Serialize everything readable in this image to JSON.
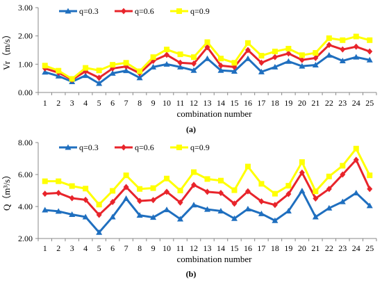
{
  "chart_data": [
    {
      "type": "line",
      "panel_label": "(a)",
      "ylabel": "Vr（m/s）",
      "xlabel": "combination number",
      "ylim": [
        0,
        3
      ],
      "yticks": [
        "0.00",
        "1.00",
        "2.00",
        "3.00"
      ],
      "categories": [
        "1",
        "2",
        "3",
        "4",
        "5",
        "6",
        "7",
        "8",
        "9",
        "10",
        "11",
        "12",
        "13",
        "14",
        "15",
        "16",
        "17",
        "18",
        "19",
        "20",
        "21",
        "22",
        "23",
        "24",
        "25"
      ],
      "legend_position": "top-left",
      "grid": false,
      "series": [
        {
          "name": "q=0.3",
          "color": "#1f6fbf",
          "marker": "triangle",
          "values": [
            0.72,
            0.58,
            0.38,
            0.6,
            0.32,
            0.68,
            0.77,
            0.52,
            0.9,
            1.0,
            0.9,
            0.78,
            1.2,
            0.78,
            0.75,
            1.2,
            0.73,
            0.9,
            1.1,
            0.93,
            0.97,
            1.32,
            1.12,
            1.25,
            1.15
          ]
        },
        {
          "name": "q=0.6",
          "color": "#e8242b",
          "marker": "diamond",
          "values": [
            0.85,
            0.7,
            0.45,
            0.75,
            0.52,
            0.85,
            0.92,
            0.68,
            1.12,
            1.33,
            1.05,
            1.02,
            1.6,
            0.95,
            0.9,
            1.5,
            1.05,
            1.25,
            1.38,
            1.15,
            1.22,
            1.68,
            1.52,
            1.62,
            1.45
          ]
        },
        {
          "name": "q=0.9",
          "color": "#ffff00",
          "marker": "square",
          "values": [
            0.95,
            0.77,
            0.48,
            0.87,
            0.78,
            0.98,
            1.05,
            0.75,
            1.25,
            1.52,
            1.35,
            1.25,
            1.78,
            1.2,
            1.05,
            1.75,
            1.3,
            1.45,
            1.55,
            1.32,
            1.4,
            1.92,
            1.85,
            1.98,
            1.85
          ]
        }
      ]
    },
    {
      "type": "line",
      "panel_label": "(b)",
      "ylabel": "Q（m³/s）",
      "xlabel": "combination number",
      "ylim": [
        2,
        8
      ],
      "yticks": [
        "2.00",
        "4.00",
        "6.00",
        "8.00"
      ],
      "categories": [
        "1",
        "2",
        "3",
        "4",
        "5",
        "6",
        "7",
        "8",
        "9",
        "10",
        "11",
        "12",
        "13",
        "14",
        "15",
        "16",
        "17",
        "18",
        "19",
        "20",
        "21",
        "22",
        "23",
        "24",
        "25"
      ],
      "legend_position": "top-left",
      "grid": false,
      "series": [
        {
          "name": "q=0.3",
          "color": "#1f6fbf",
          "marker": "triangle",
          "values": [
            3.78,
            3.7,
            3.5,
            3.35,
            2.38,
            3.35,
            4.5,
            3.45,
            3.32,
            3.8,
            3.22,
            4.1,
            3.82,
            3.72,
            3.25,
            3.85,
            3.55,
            3.12,
            3.72,
            4.98,
            3.35,
            3.9,
            4.3,
            4.85,
            4.05
          ]
        },
        {
          "name": "q=0.6",
          "color": "#e8242b",
          "marker": "diamond",
          "values": [
            4.8,
            4.85,
            4.52,
            4.42,
            3.48,
            4.28,
            5.22,
            4.35,
            4.4,
            4.92,
            4.25,
            5.35,
            4.92,
            4.85,
            4.18,
            4.95,
            4.32,
            4.1,
            4.78,
            6.12,
            4.5,
            5.1,
            6.0,
            6.92,
            5.1
          ]
        },
        {
          "name": "q=0.9",
          "color": "#ffff00",
          "marker": "square",
          "values": [
            5.58,
            5.58,
            5.28,
            5.12,
            4.12,
            4.98,
            5.95,
            5.1,
            5.15,
            5.75,
            5.0,
            6.15,
            5.72,
            5.62,
            5.02,
            6.5,
            5.42,
            4.8,
            5.3,
            6.78,
            4.95,
            5.88,
            6.55,
            7.62,
            5.95
          ]
        }
      ]
    }
  ]
}
